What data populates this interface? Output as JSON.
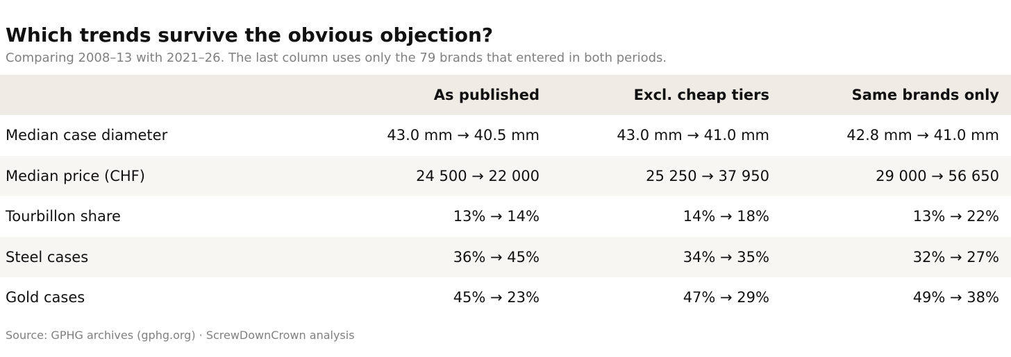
{
  "title": "Which trends survive the obvious objection?",
  "subtitle": "Comparing 2008–13 with 2021–26. The last column uses only the 79 brands that entered in both periods.",
  "table": {
    "header": [
      "As published",
      "Excl. cheap tiers",
      "Same brands only"
    ],
    "rows": [
      [
        "Median case diameter",
        "43.0 mm → 40.5 mm",
        "43.0 mm → 41.0 mm",
        "42.8 mm → 41.0 mm"
      ],
      [
        "Median price (CHF)",
        "24 500 → 22 000",
        "25 250 → 37 950",
        "29 000 → 56 650"
      ],
      [
        "Tourbillon share",
        "13% → 14%",
        "14% → 18%",
        "13% → 22%"
      ],
      [
        "Steel cases",
        "36% → 45%",
        "34% → 35%",
        "32% → 27%"
      ],
      [
        "Gold cases",
        "45% → 23%",
        "47% → 29%",
        "49% → 38%"
      ]
    ]
  },
  "source": "Source: GPHG archives (gphg.org) · ScrewDownCrown analysis"
}
